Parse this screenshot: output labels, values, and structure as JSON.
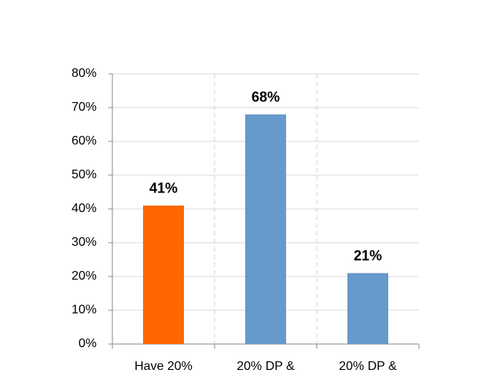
{
  "chart_data": {
    "type": "bar",
    "categories": [
      "Have 20%",
      "20% DP &",
      "20% DP &"
    ],
    "values": [
      41,
      68,
      21
    ],
    "value_labels": [
      "41%",
      "68%",
      "21%"
    ],
    "colors": [
      "#ff6600",
      "#6699cc",
      "#6699cc"
    ],
    "ylim": [
      0,
      80
    ],
    "yticks": [
      {
        "value": 0,
        "label": "0%"
      },
      {
        "value": 10,
        "label": "10%"
      },
      {
        "value": 20,
        "label": "20%"
      },
      {
        "value": 30,
        "label": "30%"
      },
      {
        "value": 40,
        "label": "40%"
      },
      {
        "value": 50,
        "label": "50%"
      },
      {
        "value": 60,
        "label": "60%"
      },
      {
        "value": 70,
        "label": "70%"
      },
      {
        "value": 80,
        "label": "80%"
      }
    ],
    "grid": true
  }
}
